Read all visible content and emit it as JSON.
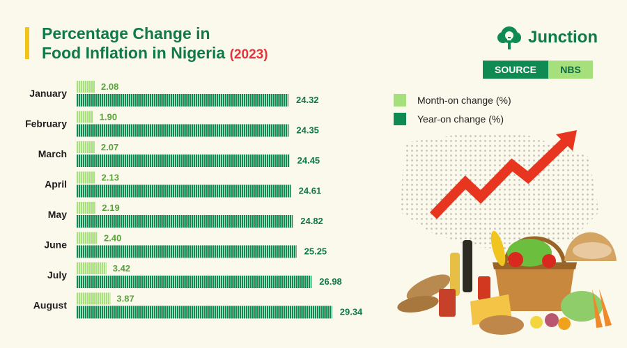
{
  "header": {
    "title_line1": "Percentage Change in",
    "title_line2": "Food Inflation in Nigeria",
    "title_year": "(2023)"
  },
  "brand": {
    "name": "Junction",
    "logo_icon": "tree-cloud-icon"
  },
  "source": {
    "label": "SOURCE",
    "value": "NBS"
  },
  "colors": {
    "month_on": "#a6e07c",
    "year_on": "#0f8a52",
    "accent": "#f2c419",
    "arrow": "#e8351f",
    "background": "#fbf8ec"
  },
  "chart_data": {
    "type": "bar",
    "orientation": "horizontal",
    "title": "Percentage Change in Food Inflation in Nigeria (2023)",
    "categories": [
      "January",
      "February",
      "March",
      "April",
      "May",
      "June",
      "July",
      "August"
    ],
    "series": [
      {
        "name": "Month-on change (%)",
        "values": [
          2.08,
          1.9,
          2.07,
          2.13,
          2.19,
          2.4,
          3.42,
          3.87
        ]
      },
      {
        "name": "Year-on change (%)",
        "values": [
          24.32,
          24.35,
          24.45,
          24.61,
          24.82,
          25.25,
          26.98,
          29.34
        ]
      }
    ],
    "legend_position": "right",
    "grid": false
  }
}
